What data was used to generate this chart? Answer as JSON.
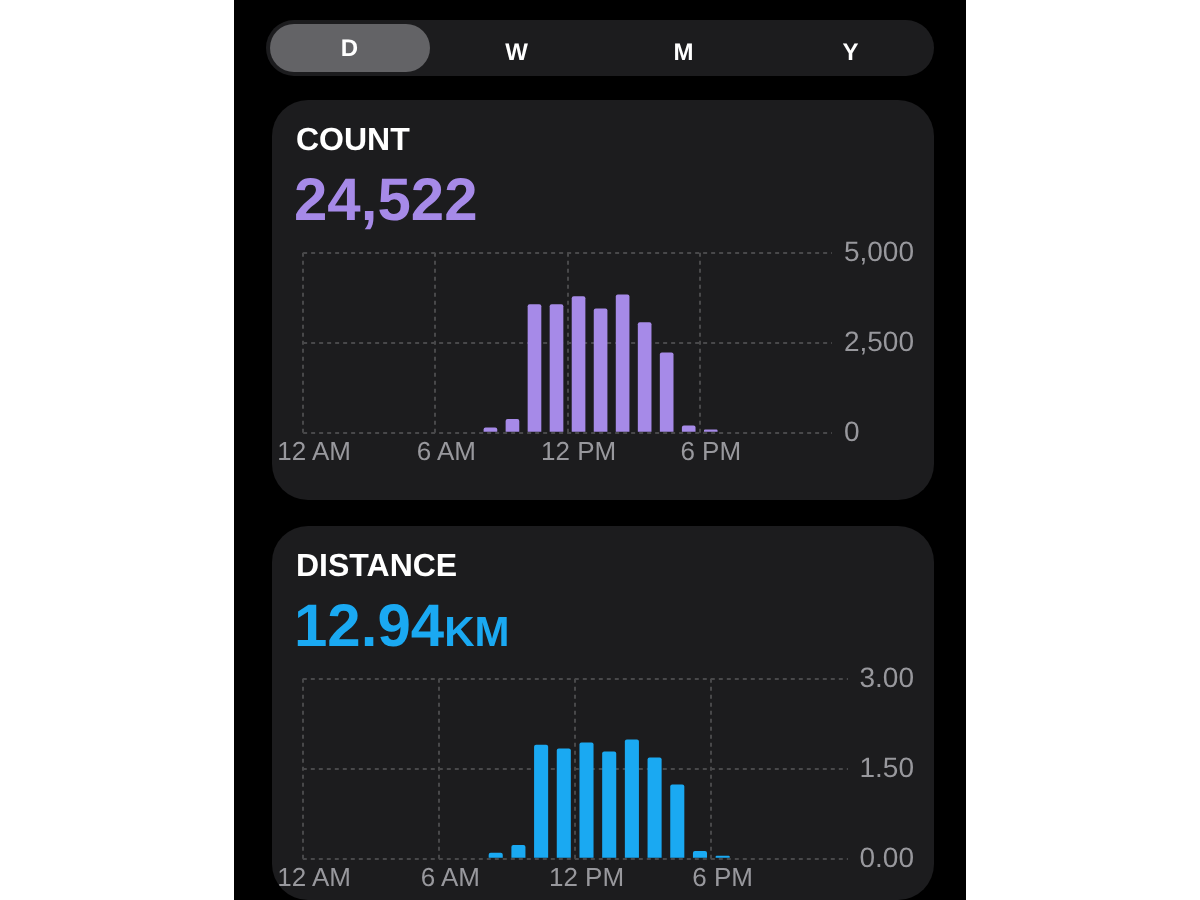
{
  "chart_data": [
    {
      "type": "other",
      "annotations": [
        "D",
        "W",
        "M",
        "Y"
      ]
    },
    {
      "type": "bar",
      "title": "COUNT",
      "subtitle": "24,522",
      "categories": [
        "12 AM",
        null,
        null,
        null,
        null,
        null,
        "6 AM",
        null,
        null,
        null,
        null,
        null,
        "12 PM",
        null,
        null,
        null,
        null,
        null,
        "6 PM",
        null,
        null,
        null,
        null,
        null
      ],
      "series": [
        {
          "color": "#a68ae8",
          "values": [
            0,
            0,
            0,
            0,
            0,
            0,
            0,
            0,
            150,
            380,
            3570,
            3570,
            3790,
            3450,
            3840,
            3070,
            2230,
            200,
            90,
            0,
            0,
            0,
            0,
            0
          ]
        }
      ],
      "ylim": [
        0,
        5000
      ],
      "yticks": [
        0,
        {
          "value": 2500,
          "label": "2,500"
        },
        {
          "value": 5000,
          "label": "5,000"
        }
      ],
      "grid": true,
      "legend": false
    },
    {
      "type": "bar",
      "title": "DISTANCE",
      "subtitle": "12.94km",
      "categories": [
        "12 AM",
        null,
        null,
        null,
        null,
        null,
        "6 AM",
        null,
        null,
        null,
        null,
        null,
        "12 PM",
        null,
        null,
        null,
        null,
        null,
        "6 PM",
        null,
        null,
        null,
        null,
        null
      ],
      "series": [
        {
          "color": "#1aa9f2",
          "values": [
            0,
            0,
            0,
            0,
            0,
            0,
            0,
            0,
            0.1,
            0.23,
            1.9,
            1.84,
            1.94,
            1.79,
            1.99,
            1.69,
            1.24,
            0.13,
            0.05,
            0,
            0,
            0,
            0,
            0
          ]
        }
      ],
      "ylim": [
        0,
        3
      ],
      "yticks": [
        {
          "value": 0,
          "label": "0.00"
        },
        {
          "value": 1.5,
          "label": "1.50"
        },
        {
          "value": 3,
          "label": "3.00"
        }
      ],
      "grid": true,
      "legend": false
    }
  ]
}
